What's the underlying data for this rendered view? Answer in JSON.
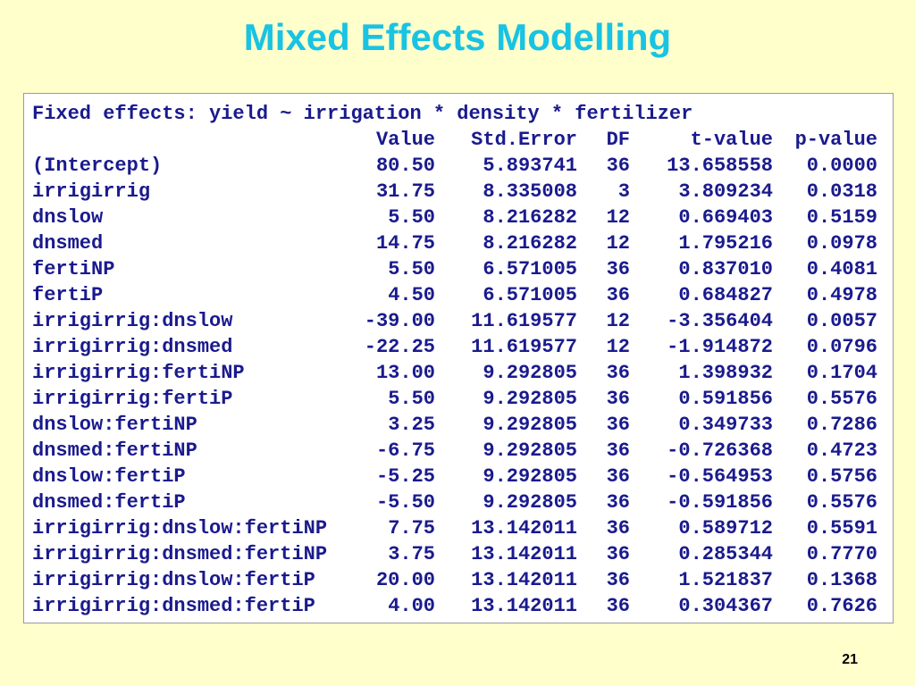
{
  "title": "Mixed Effects Modelling",
  "table": {
    "caption": "Fixed effects: yield ~ irrigation * density * fertilizer",
    "headers": [
      "Value",
      "Std.Error",
      "DF",
      "t-value",
      "p-value"
    ],
    "rows": [
      [
        "(Intercept)",
        "80.50",
        "5.893741",
        "36",
        "13.658558",
        "0.0000"
      ],
      [
        "irrigirrig",
        "31.75",
        "8.335008",
        "3",
        "3.809234",
        "0.0318"
      ],
      [
        "dnslow",
        "5.50",
        "8.216282",
        "12",
        "0.669403",
        "0.5159"
      ],
      [
        "dnsmed",
        "14.75",
        "8.216282",
        "12",
        "1.795216",
        "0.0978"
      ],
      [
        "fertiNP",
        "5.50",
        "6.571005",
        "36",
        "0.837010",
        "0.4081"
      ],
      [
        "fertiP",
        "4.50",
        "6.571005",
        "36",
        "0.684827",
        "0.4978"
      ],
      [
        "irrigirrig:dnslow",
        "-39.00",
        "11.619577",
        "12",
        "-3.356404",
        "0.0057"
      ],
      [
        "irrigirrig:dnsmed",
        "-22.25",
        "11.619577",
        "12",
        "-1.914872",
        "0.0796"
      ],
      [
        "irrigirrig:fertiNP",
        "13.00",
        "9.292805",
        "36",
        "1.398932",
        "0.1704"
      ],
      [
        "irrigirrig:fertiP",
        "5.50",
        "9.292805",
        "36",
        "0.591856",
        "0.5576"
      ],
      [
        "dnslow:fertiNP",
        "3.25",
        "9.292805",
        "36",
        "0.349733",
        "0.7286"
      ],
      [
        "dnsmed:fertiNP",
        "-6.75",
        "9.292805",
        "36",
        "-0.726368",
        "0.4723"
      ],
      [
        "dnslow:fertiP",
        "-5.25",
        "9.292805",
        "36",
        "-0.564953",
        "0.5756"
      ],
      [
        "dnsmed:fertiP",
        "-5.50",
        "9.292805",
        "36",
        "-0.591856",
        "0.5576"
      ],
      [
        "irrigirrig:dnslow:fertiNP",
        "7.75",
        "13.142011",
        "36",
        "0.589712",
        "0.5591"
      ],
      [
        "irrigirrig:dnsmed:fertiNP",
        "3.75",
        "13.142011",
        "36",
        "0.285344",
        "0.7770"
      ],
      [
        "irrigirrig:dnslow:fertiP",
        "20.00",
        "13.142011",
        "36",
        "1.521837",
        "0.1368"
      ],
      [
        "irrigirrig:dnsmed:fertiP",
        "4.00",
        "13.142011",
        "36",
        "0.304367",
        "0.7626"
      ]
    ]
  },
  "page_number": "21"
}
